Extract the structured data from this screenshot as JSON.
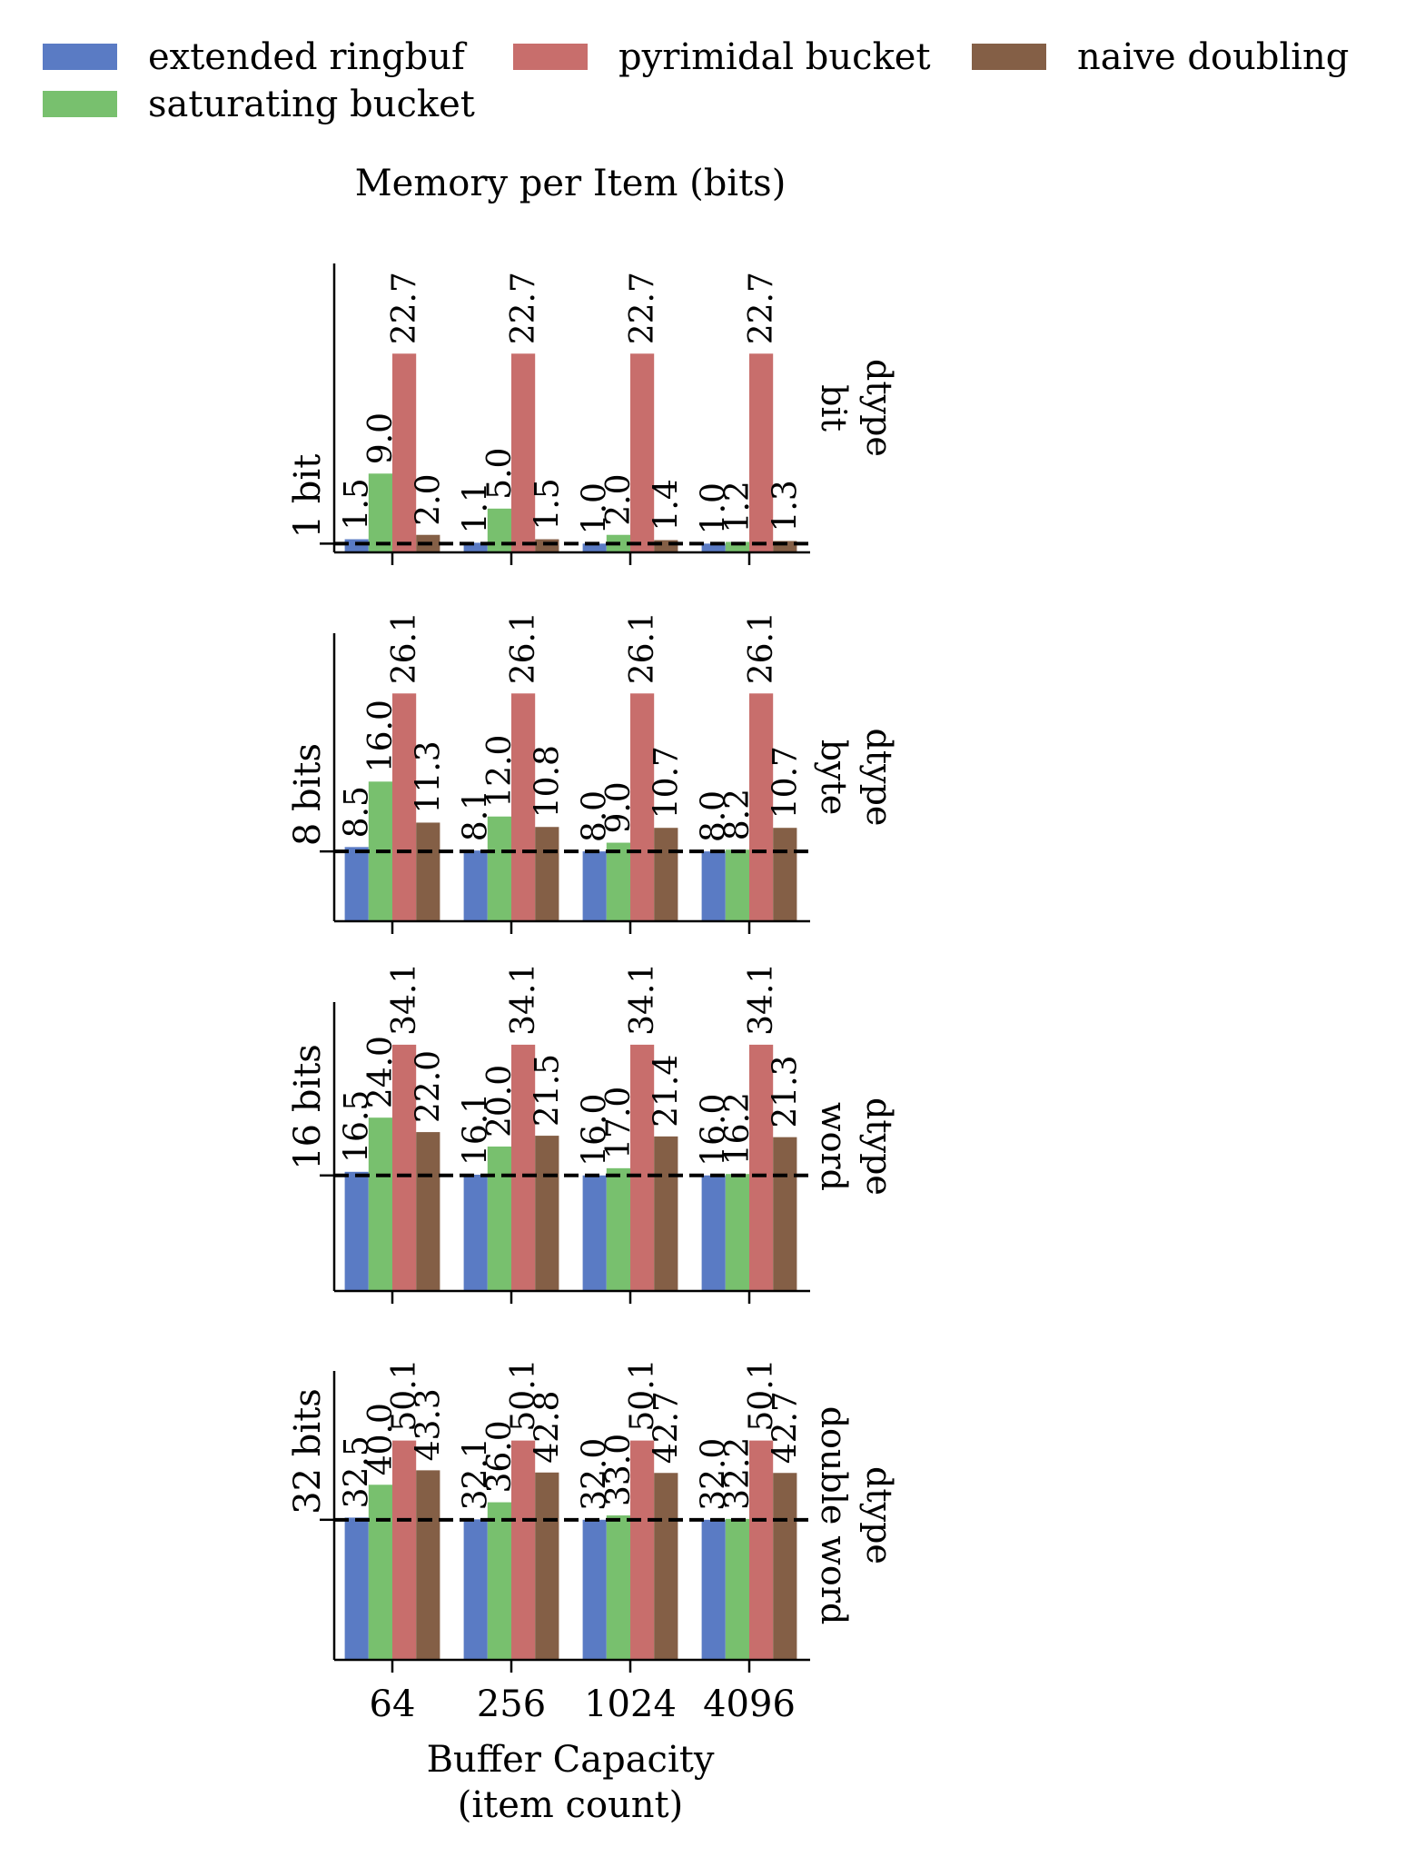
{
  "chart_data": {
    "type": "bar",
    "title": "Memory per Item (bits)",
    "xlabel_lines": [
      "Buffer Capacity",
      "(item count)"
    ],
    "categories": [
      "64",
      "256",
      "1024",
      "4096"
    ],
    "legend": {
      "placement": "top",
      "entries": [
        {
          "name": "extended ringbuf",
          "color": "#5a7bc4"
        },
        {
          "name": "saturating bucket",
          "color": "#78c06e"
        },
        {
          "name": "pyrimidal bucket",
          "color": "#c86e6c"
        },
        {
          "name": "naive doubling",
          "color": "#845f46"
        }
      ]
    },
    "series_order": [
      "extended ringbuf",
      "saturating bucket",
      "pyrimidal bucket",
      "naive doubling"
    ],
    "panels": [
      {
        "row_label_lines": [
          "dtype",
          "bit"
        ],
        "ref_label": "1 bit",
        "ref_value": 1,
        "ylim": [
          0,
          33
        ],
        "values": [
          [
            1.5,
            9.0,
            22.7,
            2.0
          ],
          [
            1.1,
            5.0,
            22.7,
            1.5
          ],
          [
            1.0,
            2.0,
            22.7,
            1.4
          ],
          [
            1.0,
            1.2,
            22.7,
            1.3
          ]
        ]
      },
      {
        "row_label_lines": [
          "dtype",
          "byte"
        ],
        "ref_label": "8 bits",
        "ref_value": 8,
        "ylim": [
          0,
          33
        ],
        "values": [
          [
            8.5,
            16.0,
            26.1,
            11.3
          ],
          [
            8.1,
            12.0,
            26.1,
            10.8
          ],
          [
            8.0,
            9.0,
            26.1,
            10.7
          ],
          [
            8.0,
            8.2,
            26.1,
            10.7
          ]
        ]
      },
      {
        "row_label_lines": [
          "dtype",
          "word"
        ],
        "ref_label": "16 bits",
        "ref_value": 16,
        "ylim": [
          0,
          40
        ],
        "values": [
          [
            16.5,
            24.0,
            34.1,
            22.0
          ],
          [
            16.1,
            20.0,
            34.1,
            21.5
          ],
          [
            16.0,
            17.0,
            34.1,
            21.4
          ],
          [
            16.0,
            16.2,
            34.1,
            21.3
          ]
        ]
      },
      {
        "row_label_lines": [
          "dtype",
          "double word"
        ],
        "ref_label": "32 bits",
        "ref_value": 32,
        "ylim": [
          0,
          66
        ],
        "values": [
          [
            32.5,
            40.0,
            50.1,
            43.3
          ],
          [
            32.1,
            36.0,
            50.1,
            42.8
          ],
          [
            32.0,
            33.0,
            50.1,
            42.7
          ],
          [
            32.0,
            32.2,
            50.1,
            42.7
          ]
        ]
      }
    ]
  }
}
